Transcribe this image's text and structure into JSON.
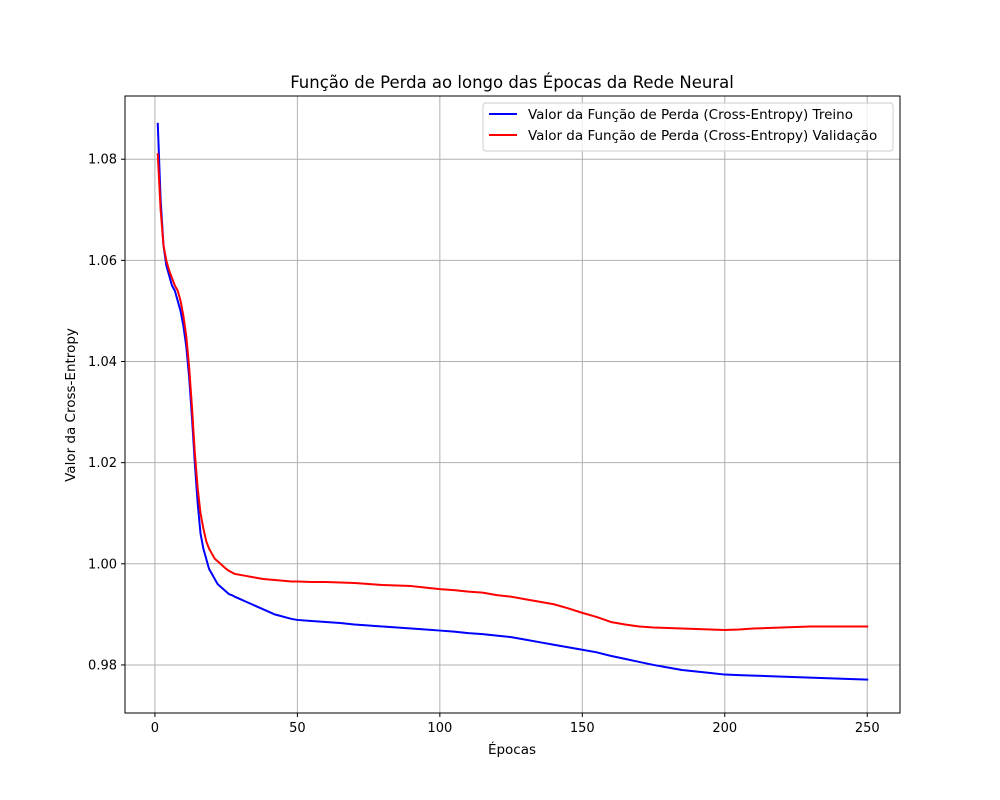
{
  "chart_data": {
    "type": "line",
    "title": "Função de Perda ao longo das Épocas da Rede Neural",
    "xlabel": "Épocas",
    "ylabel": "Valor da Cross-Entropy",
    "xlim": [
      -10.5,
      261.5
    ],
    "ylim": [
      0.9705,
      1.0925
    ],
    "xticks": [
      0,
      50,
      100,
      150,
      200,
      250
    ],
    "yticks": [
      0.98,
      1.0,
      1.02,
      1.04,
      1.06,
      1.08
    ],
    "grid": true,
    "legend_position": "top-right",
    "series": [
      {
        "name": "Valor da Função de Perda (Cross-Entropy) Treino",
        "color": "#0000ff",
        "x": [
          1,
          2,
          3,
          4,
          5,
          6,
          7,
          8,
          9,
          10,
          11,
          12,
          13,
          14,
          15,
          16,
          17,
          18,
          19,
          20,
          21,
          22,
          23,
          24,
          25,
          26,
          27,
          28,
          30,
          32,
          34,
          36,
          38,
          40,
          42,
          44,
          46,
          48,
          50,
          55,
          60,
          65,
          70,
          75,
          80,
          85,
          90,
          95,
          100,
          105,
          110,
          115,
          120,
          125,
          130,
          135,
          140,
          145,
          150,
          155,
          160,
          165,
          170,
          175,
          180,
          185,
          190,
          195,
          200,
          205,
          210,
          215,
          220,
          225,
          230,
          235,
          240,
          245,
          250
        ],
        "values": [
          1.087,
          1.072,
          1.063,
          1.059,
          1.057,
          1.055,
          1.054,
          1.052,
          1.05,
          1.047,
          1.043,
          1.037,
          1.029,
          1.02,
          1.012,
          1.006,
          1.003,
          1.001,
          0.999,
          0.998,
          0.997,
          0.996,
          0.9955,
          0.995,
          0.9945,
          0.994,
          0.9938,
          0.9935,
          0.993,
          0.9925,
          0.992,
          0.9915,
          0.991,
          0.9905,
          0.99,
          0.9897,
          0.9894,
          0.9891,
          0.9889,
          0.9887,
          0.9885,
          0.9883,
          0.988,
          0.9878,
          0.9876,
          0.9874,
          0.9872,
          0.987,
          0.9868,
          0.9866,
          0.9863,
          0.9861,
          0.9858,
          0.9855,
          0.985,
          0.9845,
          0.984,
          0.9835,
          0.983,
          0.9825,
          0.9818,
          0.9812,
          0.9806,
          0.98,
          0.9795,
          0.979,
          0.9787,
          0.9784,
          0.9781,
          0.978,
          0.9779,
          0.9778,
          0.9777,
          0.9776,
          0.9775,
          0.9774,
          0.9773,
          0.9772,
          0.9771
        ]
      },
      {
        "name": "Valor da Função de Perda (Cross-Entropy) Validação",
        "color": "#ff0000",
        "x": [
          1,
          2,
          3,
          4,
          5,
          6,
          7,
          8,
          9,
          10,
          11,
          12,
          13,
          14,
          15,
          16,
          17,
          18,
          19,
          20,
          21,
          22,
          23,
          24,
          25,
          26,
          27,
          28,
          30,
          32,
          34,
          36,
          38,
          40,
          42,
          44,
          46,
          48,
          50,
          55,
          60,
          65,
          70,
          75,
          80,
          85,
          90,
          95,
          100,
          105,
          110,
          115,
          120,
          125,
          130,
          135,
          140,
          145,
          150,
          155,
          160,
          165,
          170,
          175,
          180,
          185,
          190,
          195,
          200,
          205,
          210,
          215,
          220,
          225,
          230,
          235,
          240,
          245,
          250
        ],
        "values": [
          1.081,
          1.07,
          1.063,
          1.06,
          1.058,
          1.0565,
          1.055,
          1.054,
          1.052,
          1.049,
          1.045,
          1.039,
          1.031,
          1.022,
          1.015,
          1.01,
          1.007,
          1.0045,
          1.003,
          1.002,
          1.001,
          1.0005,
          1.0,
          0.9995,
          0.999,
          0.9986,
          0.9983,
          0.998,
          0.9978,
          0.9976,
          0.9974,
          0.9972,
          0.997,
          0.9969,
          0.9968,
          0.9967,
          0.9966,
          0.9965,
          0.9965,
          0.9964,
          0.9964,
          0.9963,
          0.9962,
          0.996,
          0.9958,
          0.9957,
          0.9956,
          0.9953,
          0.995,
          0.9948,
          0.9945,
          0.9943,
          0.9938,
          0.9935,
          0.993,
          0.9925,
          0.992,
          0.9912,
          0.9903,
          0.9895,
          0.9885,
          0.988,
          0.9876,
          0.9874,
          0.9873,
          0.9872,
          0.9871,
          0.987,
          0.9869,
          0.987,
          0.9872,
          0.9873,
          0.9874,
          0.9875,
          0.9876,
          0.9876,
          0.9876,
          0.9876,
          0.9876
        ]
      }
    ]
  }
}
